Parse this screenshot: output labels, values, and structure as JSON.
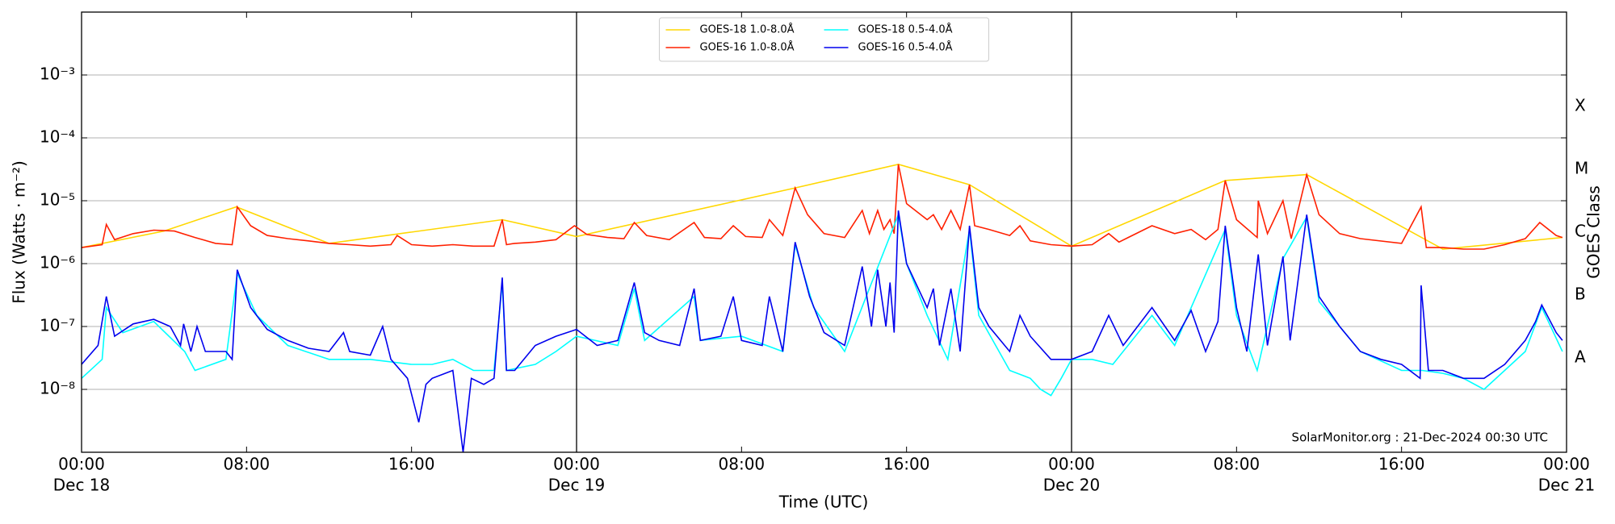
{
  "chart_data": {
    "type": "line",
    "xlabel": "Time (UTC)",
    "ylabel": "Flux (Watts · m⁻²)",
    "y2label": "GOES Class",
    "annotation": "SolarMonitor.org : 21-Dec-2024 00:30 UTC",
    "xlim": [
      0,
      72
    ],
    "xticks": [
      {
        "value": 0,
        "label": "00:00"
      },
      {
        "value": 8,
        "label": "08:00"
      },
      {
        "value": 16,
        "label": "16:00"
      },
      {
        "value": 24,
        "label": "00:00"
      },
      {
        "value": 32,
        "label": "08:00"
      },
      {
        "value": 40,
        "label": "16:00"
      },
      {
        "value": 48,
        "label": "00:00"
      },
      {
        "value": 56,
        "label": "08:00"
      },
      {
        "value": 64,
        "label": "16:00"
      },
      {
        "value": 72,
        "label": "00:00"
      }
    ],
    "xdate_labels": [
      {
        "value": 0,
        "label": "Dec 18"
      },
      {
        "value": 24,
        "label": "Dec 19"
      },
      {
        "value": 48,
        "label": "Dec 20"
      },
      {
        "value": 72,
        "label": "Dec 21"
      }
    ],
    "day_lines": true,
    "ylim": [
      1e-09,
      0.01
    ],
    "log_y": true,
    "grid": true,
    "yticks": [
      {
        "value": 1e-08,
        "label": "10⁻⁸"
      },
      {
        "value": 1e-07,
        "label": "10⁻⁷"
      },
      {
        "value": 1e-06,
        "label": "10⁻⁶"
      },
      {
        "value": 1e-05,
        "label": "10⁻⁵"
      },
      {
        "value": 0.0001,
        "label": "10⁻⁴"
      },
      {
        "value": 0.001,
        "label": "10⁻³"
      }
    ],
    "class_labels": [
      {
        "value": 3.16e-08,
        "label": "A"
      },
      {
        "value": 3.16e-07,
        "label": "B"
      },
      {
        "value": 3.16e-06,
        "label": "C"
      },
      {
        "value": 3.16e-05,
        "label": "M"
      },
      {
        "value": 0.000316,
        "label": "X"
      }
    ],
    "legend": "upper center",
    "legend_columns": 2,
    "series": [
      {
        "name": "GOES-18 1.0-8.0Å",
        "color": "#ffd700",
        "x": [
          0,
          4,
          7.5,
          12,
          20.4,
          24,
          34.6,
          39.6,
          43.05,
          48,
          55.45,
          59.4,
          66,
          71.8
        ],
        "values": [
          1.8e-06,
          3.3e-06,
          8e-06,
          2.1e-06,
          5e-06,
          2.7e-06,
          1.6e-05,
          3.8e-05,
          1.8e-05,
          1.9e-06,
          2.1e-05,
          2.6e-05,
          1.7e-06,
          2.6e-06
        ]
      },
      {
        "name": "GOES-16 1.0-8.0Å",
        "color": "#ff2000",
        "x": [
          0,
          1,
          1.2,
          1.6,
          2.5,
          3.5,
          4.5,
          5.5,
          6.5,
          7.3,
          7.55,
          8.2,
          9,
          10,
          11,
          12,
          13,
          14,
          15,
          15.3,
          16,
          17,
          18,
          19,
          20,
          20.4,
          20.6,
          21,
          22,
          23,
          23.9,
          24.5,
          25.5,
          26.3,
          26.8,
          27.4,
          28.5,
          29.7,
          30.2,
          31,
          31.6,
          32.2,
          33,
          33.35,
          34,
          34.6,
          35.2,
          36,
          37,
          37.85,
          38.2,
          38.6,
          38.9,
          39.2,
          39.4,
          39.6,
          40,
          41,
          41.3,
          41.7,
          42.15,
          42.6,
          43.05,
          43.3,
          44,
          45,
          45.5,
          46,
          47,
          48,
          49,
          49.8,
          50.3,
          51.9,
          53,
          53.8,
          54.5,
          55.1,
          55.45,
          56,
          57,
          57.05,
          57.5,
          58.25,
          58.65,
          59.4,
          60,
          61,
          62,
          64,
          64.95,
          65.2,
          66,
          67,
          68,
          69,
          70,
          70.7,
          71.5,
          71.8
        ],
        "values": [
          1.8e-06,
          2e-06,
          4.2e-06,
          2.4e-06,
          3e-06,
          3.4e-06,
          3.3e-06,
          2.6e-06,
          2.1e-06,
          2e-06,
          8e-06,
          4e-06,
          2.8e-06,
          2.5e-06,
          2.3e-06,
          2.1e-06,
          2e-06,
          1.9e-06,
          2e-06,
          2.8e-06,
          2e-06,
          1.9e-06,
          2e-06,
          1.9e-06,
          1.9e-06,
          5e-06,
          2e-06,
          2.1e-06,
          2.2e-06,
          2.4e-06,
          4e-06,
          2.9e-06,
          2.6e-06,
          2.5e-06,
          4.5e-06,
          2.8e-06,
          2.4e-06,
          4.5e-06,
          2.6e-06,
          2.5e-06,
          4e-06,
          2.7e-06,
          2.6e-06,
          5e-06,
          2.8e-06,
          1.6e-05,
          6e-06,
          3e-06,
          2.6e-06,
          7e-06,
          3e-06,
          7e-06,
          3.5e-06,
          5e-06,
          3e-06,
          3.8e-05,
          9e-06,
          5e-06,
          6e-06,
          3.5e-06,
          7e-06,
          3.5e-06,
          1.8e-05,
          4e-06,
          3.5e-06,
          2.8e-06,
          4e-06,
          2.3e-06,
          2e-06,
          1.9e-06,
          2e-06,
          3e-06,
          2.2e-06,
          4e-06,
          3e-06,
          3.5e-06,
          2.4e-06,
          3.5e-06,
          2.1e-05,
          5e-06,
          2.6e-06,
          1e-05,
          3e-06,
          1e-05,
          2.5e-06,
          2.6e-05,
          6e-06,
          3e-06,
          2.5e-06,
          2.1e-06,
          8e-06,
          1.8e-06,
          1.8e-06,
          1.7e-06,
          1.7e-06,
          2e-06,
          2.5e-06,
          4.5e-06,
          2.8e-06,
          2.6e-06
        ]
      },
      {
        "name": "GOES-18 0.5-4.0Å",
        "color": "#00ffff",
        "x": [
          0,
          1,
          1.2,
          2,
          3.5,
          5,
          5.5,
          7,
          7.55,
          8.5,
          10,
          12,
          14,
          16,
          17,
          18,
          19,
          20,
          20.4,
          20.6,
          22,
          23,
          24,
          26,
          26.8,
          27.3,
          29.7,
          30,
          32,
          34,
          34.6,
          35.5,
          37,
          39.6,
          40,
          41,
          42,
          43.05,
          43.5,
          45,
          46,
          46.5,
          47,
          47.5,
          48,
          49,
          50,
          51.9,
          53,
          55.45,
          56,
          57,
          58.25,
          59.4,
          60,
          62,
          64,
          65,
          66,
          67,
          68,
          69,
          70,
          70.8,
          71.8
        ],
        "values": [
          1.5e-08,
          3e-08,
          2e-07,
          8e-08,
          1.2e-07,
          4e-08,
          2e-08,
          3e-08,
          7e-07,
          1.5e-07,
          5e-08,
          3e-08,
          3e-08,
          2.5e-08,
          2.5e-08,
          3e-08,
          2e-08,
          2e-08,
          5e-07,
          2e-08,
          2.5e-08,
          4e-08,
          7e-08,
          5e-08,
          4e-07,
          6e-08,
          3e-07,
          6e-08,
          7e-08,
          4e-08,
          2e-06,
          2e-07,
          4e-08,
          6e-06,
          1e-06,
          1.5e-07,
          3e-08,
          3.5e-06,
          1.5e-07,
          2e-08,
          1.5e-08,
          1e-08,
          8e-09,
          1.5e-08,
          3e-08,
          3e-08,
          2.5e-08,
          1.5e-07,
          5e-08,
          3.5e-06,
          1.5e-07,
          2e-08,
          1.2e-06,
          5.5e-06,
          2.5e-07,
          4e-08,
          2e-08,
          2e-08,
          1.8e-08,
          1.5e-08,
          1e-08,
          2e-08,
          4e-08,
          2e-07,
          4e-08
        ]
      },
      {
        "name": "GOES-16 0.5-4.0Å",
        "color": "#0000ee",
        "x": [
          0,
          0.8,
          1.2,
          1.6,
          2.5,
          3.5,
          4.3,
          4.8,
          4.95,
          5.3,
          5.6,
          6,
          7,
          7.3,
          7.55,
          8.2,
          9,
          10,
          11,
          12,
          12.7,
          13,
          14,
          14.6,
          15,
          15.8,
          16.35,
          16.7,
          17,
          18,
          18.5,
          18.9,
          19.5,
          20,
          20.4,
          20.6,
          21,
          22,
          23,
          24,
          25,
          26,
          26.8,
          27.3,
          28,
          29,
          29.7,
          30,
          31,
          31.6,
          32,
          33,
          33.35,
          34,
          34.6,
          35.3,
          36,
          37,
          37.85,
          38.3,
          38.6,
          39,
          39.2,
          39.4,
          39.6,
          40,
          41,
          41.3,
          41.6,
          42.15,
          42.6,
          43.05,
          43.5,
          44,
          45,
          45.5,
          46,
          47,
          48,
          49,
          49.8,
          50.5,
          51.9,
          53,
          53.8,
          54.5,
          55.1,
          55.45,
          56,
          56.5,
          57.05,
          57.5,
          58.25,
          58.6,
          59.4,
          60,
          61,
          62,
          63,
          64,
          64.9,
          64.95,
          65.3,
          66,
          67,
          68,
          69,
          70,
          70.5,
          70.8,
          71.5,
          71.8
        ],
        "values": [
          2.5e-08,
          5e-08,
          3e-07,
          7e-08,
          1.1e-07,
          1.3e-07,
          1e-07,
          5e-08,
          1.1e-07,
          4e-08,
          1e-07,
          4e-08,
          4e-08,
          3e-08,
          8e-07,
          2e-07,
          9e-08,
          6e-08,
          4.5e-08,
          4e-08,
          8e-08,
          4e-08,
          3.5e-08,
          1e-07,
          3e-08,
          1.5e-08,
          3e-09,
          1.2e-08,
          1.5e-08,
          2e-08,
          1e-09,
          1.5e-08,
          1.2e-08,
          1.5e-08,
          6e-07,
          2e-08,
          2e-08,
          5e-08,
          7e-08,
          9e-08,
          5e-08,
          6e-08,
          5e-07,
          8e-08,
          6e-08,
          5e-08,
          4e-07,
          6e-08,
          7e-08,
          3e-07,
          6e-08,
          5e-08,
          3e-07,
          4e-08,
          2.2e-06,
          3e-07,
          8e-08,
          5e-08,
          9e-07,
          1e-07,
          8e-07,
          1e-07,
          5e-07,
          8e-08,
          7e-06,
          1e-06,
          2e-07,
          4e-07,
          5e-08,
          4e-07,
          4e-08,
          4e-06,
          2e-07,
          1e-07,
          4e-08,
          1.5e-07,
          7e-08,
          3e-08,
          3e-08,
          4e-08,
          1.5e-07,
          5e-08,
          2e-07,
          6e-08,
          1.8e-07,
          4e-08,
          1.2e-07,
          4e-06,
          2e-07,
          4e-08,
          1.4e-06,
          5e-08,
          1.3e-06,
          6e-08,
          6e-06,
          3e-07,
          1e-07,
          4e-08,
          3e-08,
          2.5e-08,
          1.5e-08,
          4.5e-07,
          2e-08,
          2e-08,
          1.5e-08,
          1.5e-08,
          2.5e-08,
          6e-08,
          1.2e-07,
          2.2e-07,
          8e-08,
          6e-08
        ]
      }
    ]
  }
}
